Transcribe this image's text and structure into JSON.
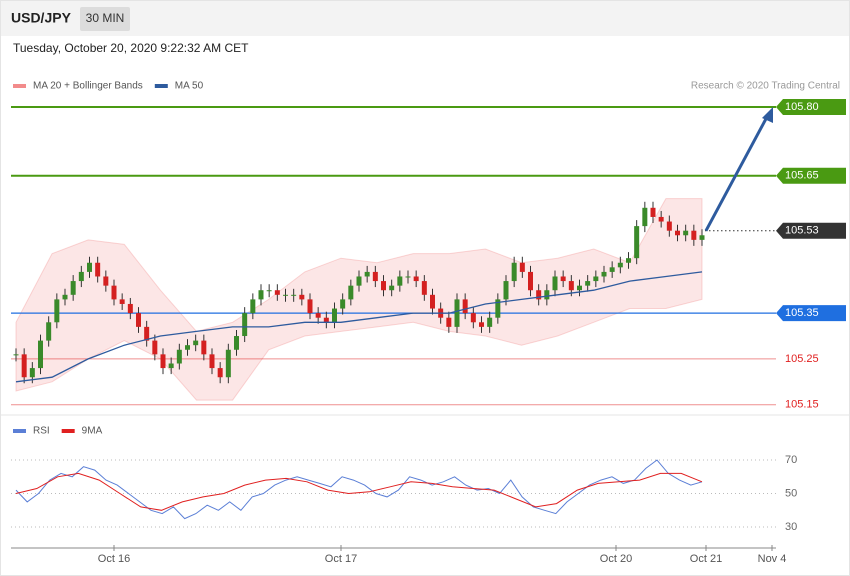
{
  "header": {
    "symbol": "USD/JPY",
    "interval": "30 MIN",
    "timestamp": "Tuesday, October 20, 2020 9:22:32 AM CET",
    "credit": "Research © 2020 Trading Central"
  },
  "chart_data": [
    {
      "type": "candlestick",
      "closes": [
        105.26,
        105.21,
        105.23,
        105.29,
        105.33,
        105.38,
        105.39,
        105.42,
        105.44,
        105.46,
        105.43,
        105.41,
        105.38,
        105.37,
        105.35,
        105.32,
        105.29,
        105.26,
        105.23,
        105.24,
        105.27,
        105.28,
        105.29,
        105.26,
        105.23,
        105.21,
        105.27,
        105.3,
        105.35,
        105.38,
        105.4,
        105.4,
        105.39,
        105.39,
        105.39,
        105.38,
        105.35,
        105.34,
        105.33,
        105.36,
        105.38,
        105.41,
        105.43,
        105.44,
        105.42,
        105.4,
        105.41,
        105.43,
        105.43,
        105.42,
        105.39,
        105.36,
        105.34,
        105.32,
        105.38,
        105.35,
        105.33,
        105.32,
        105.34,
        105.38,
        105.42,
        105.46,
        105.44,
        105.4,
        105.38,
        105.4,
        105.43,
        105.42,
        105.4,
        105.41,
        105.42,
        105.43,
        105.44,
        105.45,
        105.46,
        105.47,
        105.54,
        105.58,
        105.56,
        105.55,
        105.53,
        105.52,
        105.53,
        105.51,
        105.52
      ],
      "up_color": "#3a8a2a",
      "down_color": "#d42020",
      "series": [
        {
          "name": "MA 20 + Bollinger Bands",
          "color": "#f28b8b",
          "upper": [
            105.33,
            105.48,
            105.51,
            105.5,
            105.4,
            105.31,
            105.33,
            105.38,
            105.44,
            105.47,
            105.46,
            105.48,
            105.48,
            105.49,
            105.46,
            105.47,
            105.49,
            105.46,
            105.6,
            105.6
          ],
          "lower": [
            105.18,
            105.2,
            105.25,
            105.29,
            105.25,
            105.16,
            105.16,
            105.27,
            105.3,
            105.31,
            105.32,
            105.33,
            105.31,
            105.3,
            105.28,
            105.3,
            105.33,
            105.36,
            105.36,
            105.38
          ]
        },
        {
          "name": "MA 50",
          "color": "#2e5b9e",
          "values": [
            105.2,
            105.21,
            105.25,
            105.28,
            105.3,
            105.31,
            105.32,
            105.32,
            105.33,
            105.33,
            105.34,
            105.35,
            105.35,
            105.37,
            105.38,
            105.39,
            105.4,
            105.42,
            105.43,
            105.44
          ]
        }
      ],
      "levels": [
        {
          "value": 105.8,
          "label": "105.80",
          "color": "#4a9a12",
          "style": "box",
          "line": "solid"
        },
        {
          "value": 105.65,
          "label": "105.65",
          "color": "#4a9a12",
          "style": "box",
          "line": "solid"
        },
        {
          "value": 105.53,
          "label": "105.53",
          "color": "#333333",
          "style": "box",
          "line": "dotted"
        },
        {
          "value": 105.35,
          "label": "105.35",
          "color": "#1f6fe0",
          "style": "box",
          "line": "solid"
        },
        {
          "value": 105.25,
          "label": "105.25",
          "color": "#e02020",
          "style": "text",
          "line": "thin"
        },
        {
          "value": 105.15,
          "label": "105.15",
          "color": "#e02020",
          "style": "text",
          "line": "thin"
        }
      ],
      "ylim": [
        105.14,
        105.83
      ],
      "xticks": [
        "Oct 16",
        "Oct 17",
        "Oct 20",
        "Oct 21",
        "Nov 4"
      ]
    },
    {
      "type": "line",
      "series": [
        {
          "name": "RSI",
          "color": "#5b7fd6",
          "values": [
            52,
            45,
            50,
            58,
            62,
            60,
            66,
            64,
            58,
            55,
            50,
            45,
            40,
            38,
            42,
            35,
            38,
            43,
            40,
            45,
            40,
            48,
            50,
            55,
            58,
            60,
            58,
            56,
            54,
            60,
            58,
            55,
            50,
            48,
            52,
            60,
            58,
            55,
            57,
            60,
            55,
            52,
            53,
            50,
            58,
            48,
            42,
            40,
            38,
            45,
            50,
            55,
            58,
            60,
            56,
            58,
            65,
            70,
            62,
            58,
            55,
            57
          ]
        },
        {
          "name": "9MA",
          "color": "#e02020",
          "values": [
            50,
            53,
            60,
            62,
            58,
            50,
            42,
            40,
            45,
            48,
            50,
            55,
            58,
            59,
            57,
            52,
            50,
            51,
            54,
            57,
            56,
            54,
            53,
            52,
            47,
            42,
            44,
            52,
            56,
            57,
            58,
            62,
            62,
            57
          ]
        }
      ],
      "ylim": [
        20,
        80
      ],
      "yticks": [
        30,
        50,
        70
      ]
    }
  ]
}
